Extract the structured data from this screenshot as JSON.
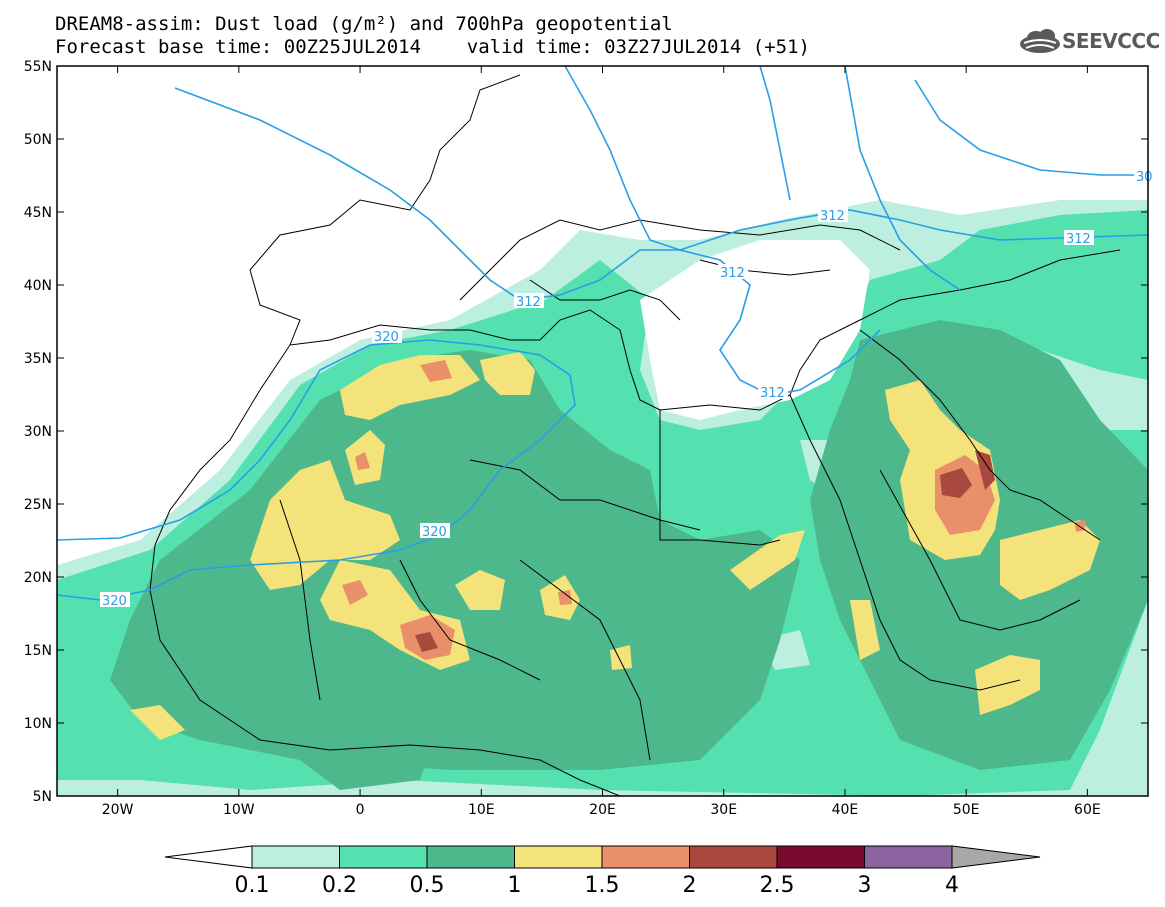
{
  "title": {
    "line1": "DREAM8-assim: Dust load (g/m²) and 700hPa geopotential",
    "line2": "Forecast base time: 00Z25JUL2014    valid time: 03Z27JUL2014 (+51)"
  },
  "logo": {
    "text": "SEEVCCC",
    "icon": "cloud-icon"
  },
  "map": {
    "lon_range": [
      -25,
      65
    ],
    "lat_range": [
      5,
      55
    ],
    "lat_ticks": [
      "55N",
      "50N",
      "45N",
      "40N",
      "35N",
      "30N",
      "25N",
      "20N",
      "15N",
      "10N",
      "5N"
    ],
    "lon_ticks": [
      "20W",
      "10W",
      "0",
      "10E",
      "20E",
      "30E",
      "40E",
      "50E",
      "60E"
    ],
    "contour_labels": [
      "320",
      "320",
      "320",
      "312",
      "312",
      "312",
      "312",
      "312",
      "30"
    ]
  },
  "colorbar": {
    "labels": [
      "0.1",
      "0.2",
      "0.5",
      "1",
      "1.5",
      "2",
      "2.5",
      "3",
      "4"
    ],
    "colors": [
      "#bdefe0",
      "#55e0b0",
      "#4cb88c",
      "#f4e37a",
      "#e9906a",
      "#a9493d",
      "#7a0b2e",
      "#8b64a0",
      "#a8a8a8"
    ]
  }
}
